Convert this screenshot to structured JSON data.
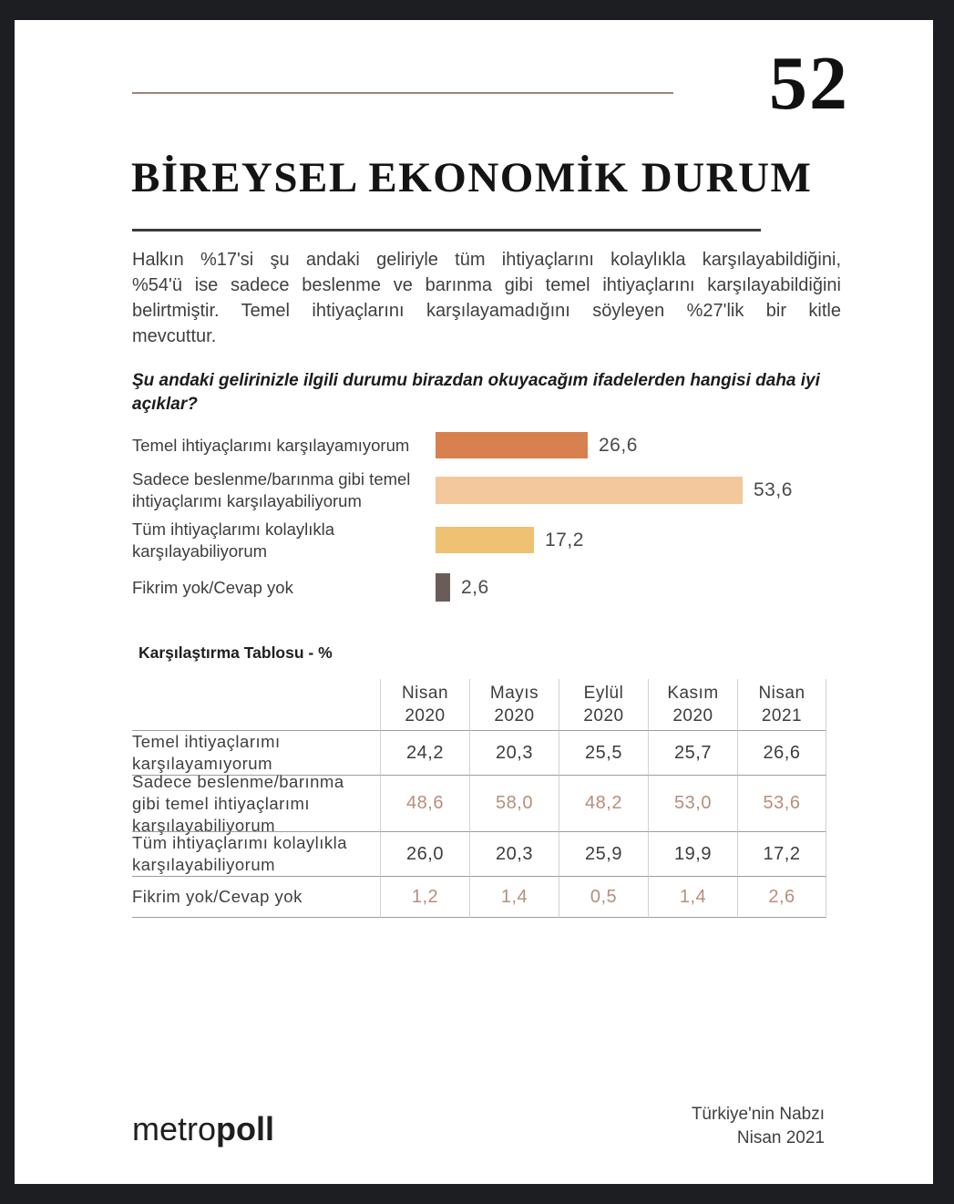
{
  "page_number": "52",
  "header": {
    "title": "BİREYSEL EKONOMİK DURUM"
  },
  "summary": "Halkın %17'si şu andaki geliriyle tüm ihtiyaçlarını kolaylıkla karşılayabildiğini, %54'ü ise sadece beslenme ve barınma gibi temel ihtiyaçlarını karşılayabildiğini belirtmiştir. Temel ihtiyaçlarını karşılayamadığını söyleyen %27'lik bir kitle mevcuttur.",
  "question": "Şu andaki gelirinizle ilgili durumu birazdan okuyacağım ifadelerden hangisi daha iyi açıklar?",
  "chart_data": {
    "type": "bar",
    "orientation": "horizontal",
    "categories": [
      "Temel ihtiyaçlarımı karşılayamıyorum",
      "Sadece beslenme/barınma gibi temel ihtiyaçlarımı karşılayabiliyorum",
      "Tüm ihtiyaçlarımı kolaylıkla karşılayabiliyorum",
      "Fikrim yok/Cevap yok"
    ],
    "values": [
      26.6,
      53.6,
      17.2,
      2.6
    ],
    "value_labels": [
      "26,6",
      "53,6",
      "17,2",
      "2,6"
    ],
    "bar_colors": [
      "#d9804f",
      "#f2c89c",
      "#eec173",
      "#6a5d58"
    ],
    "xlim": [
      0,
      60
    ],
    "grid": false,
    "legend": "none"
  },
  "table": {
    "title": "Karşılaştırma Tablosu - %",
    "columns": [
      "Nisan\n2020",
      "Mayıs\n2020",
      "Eylül\n2020",
      "Kasım\n2020",
      "Nisan\n2021"
    ],
    "rows": [
      {
        "label": "Temel ihtiyaçlarımı karşılayamıyorum",
        "values": [
          "24,2",
          "20,3",
          "25,5",
          "25,7",
          "26,6"
        ],
        "muted": false
      },
      {
        "label": "Sadece beslenme/barınma gibi temel ihtiyaçlarımı karşılayabiliyorum",
        "values": [
          "48,6",
          "58,0",
          "48,2",
          "53,0",
          "53,6"
        ],
        "muted": true
      },
      {
        "label": "Tüm ihtiyaçlarımı kolaylıkla karşılayabiliyorum",
        "values": [
          "26,0",
          "20,3",
          "25,9",
          "19,9",
          "17,2"
        ],
        "muted": false
      },
      {
        "label": "Fikrim yok/Cevap yok",
        "values": [
          "1,2",
          "1,4",
          "0,5",
          "1,4",
          "2,6"
        ],
        "muted": true
      }
    ],
    "muted_value_color": "#b68f7b",
    "value_color": "#3d3d3d"
  },
  "footer": {
    "logo": {
      "light": "metro",
      "bold": "poll"
    },
    "right": "Türkiye'nin Nabzı\nNisan 2021"
  },
  "colors": {
    "frame": "#1d1e22",
    "page_bg": "#ffffff",
    "accent_rule": "#a08273",
    "title_rule": "#3b3b3d"
  }
}
